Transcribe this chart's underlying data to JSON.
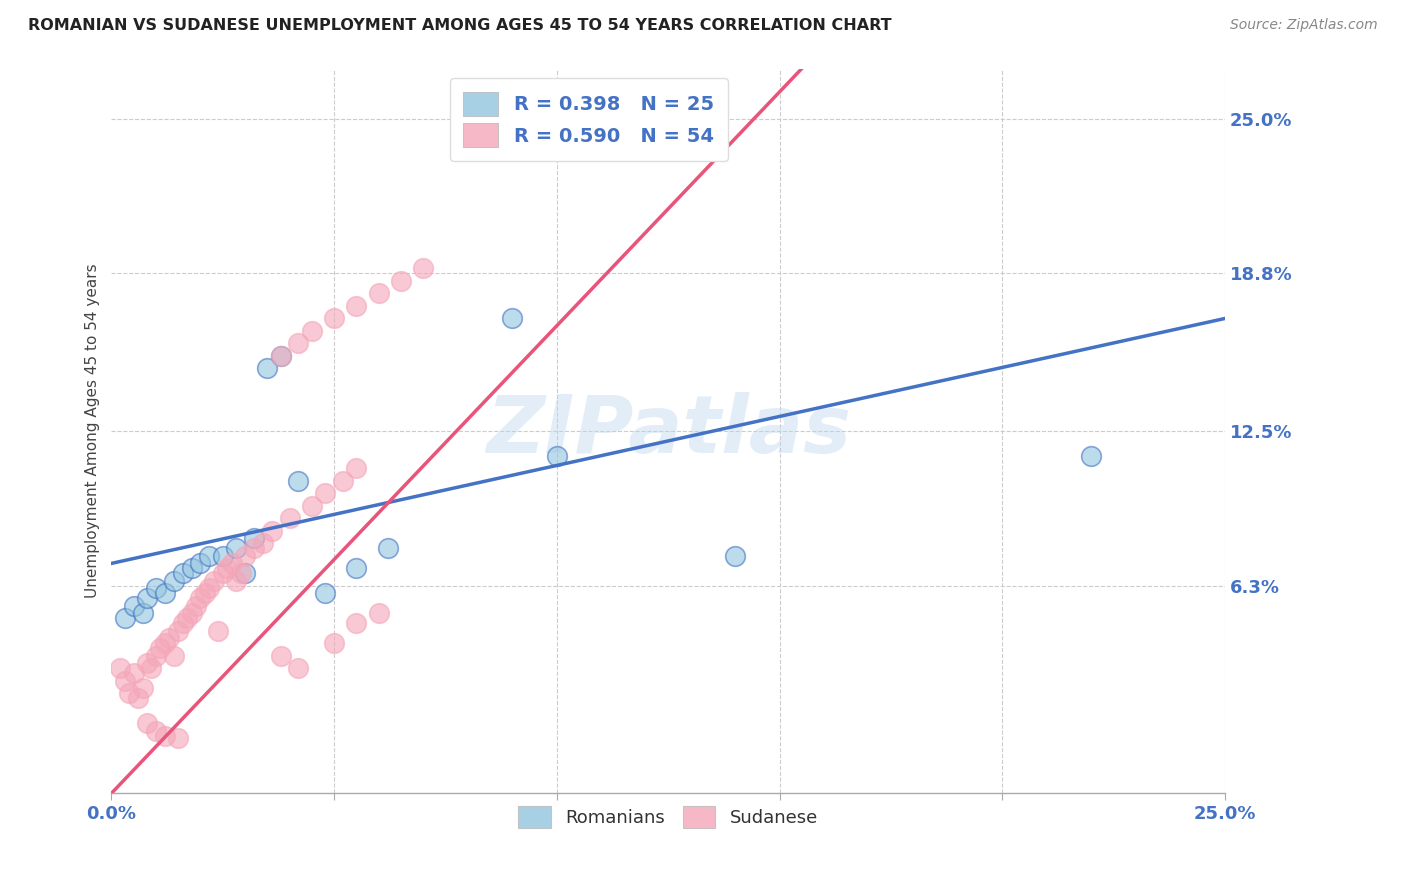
{
  "title": "ROMANIAN VS SUDANESE UNEMPLOYMENT AMONG AGES 45 TO 54 YEARS CORRELATION CHART",
  "source": "Source: ZipAtlas.com",
  "ylabel": "Unemployment Among Ages 45 to 54 years",
  "xlim": [
    0.0,
    0.25
  ],
  "ylim": [
    -0.02,
    0.27
  ],
  "ytick_values": [
    0.063,
    0.125,
    0.188,
    0.25
  ],
  "right_ytick_labels": [
    "25.0%",
    "18.8%",
    "12.5%",
    "6.3%"
  ],
  "right_ytick_values": [
    0.25,
    0.188,
    0.125,
    0.063
  ],
  "watermark": "ZIPatlas",
  "legend_r_romanian": "R = 0.398",
  "legend_n_romanian": "N = 25",
  "legend_r_sudanese": "R = 0.590",
  "legend_n_sudanese": "N = 54",
  "color_romanian": "#92c5de",
  "color_sudanese": "#f4a6b8",
  "line_color_romanian": "#4472c4",
  "line_color_sudanese": "#e8547a",
  "romanian_x": [
    0.003,
    0.005,
    0.007,
    0.008,
    0.01,
    0.012,
    0.014,
    0.016,
    0.018,
    0.02,
    0.022,
    0.025,
    0.028,
    0.03,
    0.032,
    0.035,
    0.038,
    0.042,
    0.048,
    0.055,
    0.062,
    0.09,
    0.1,
    0.14,
    0.22
  ],
  "romanian_y": [
    0.05,
    0.055,
    0.052,
    0.058,
    0.062,
    0.06,
    0.065,
    0.068,
    0.07,
    0.072,
    0.075,
    0.075,
    0.078,
    0.068,
    0.082,
    0.15,
    0.155,
    0.105,
    0.06,
    0.07,
    0.078,
    0.17,
    0.115,
    0.075,
    0.115
  ],
  "sudanese_x": [
    0.002,
    0.003,
    0.004,
    0.005,
    0.006,
    0.007,
    0.008,
    0.009,
    0.01,
    0.011,
    0.012,
    0.013,
    0.014,
    0.015,
    0.016,
    0.017,
    0.018,
    0.019,
    0.02,
    0.021,
    0.022,
    0.023,
    0.024,
    0.025,
    0.026,
    0.027,
    0.028,
    0.029,
    0.03,
    0.032,
    0.034,
    0.036,
    0.038,
    0.04,
    0.042,
    0.045,
    0.048,
    0.05,
    0.052,
    0.055,
    0.038,
    0.042,
    0.045,
    0.05,
    0.055,
    0.06,
    0.065,
    0.07,
    0.055,
    0.06,
    0.008,
    0.01,
    0.012,
    0.015
  ],
  "sudanese_y": [
    0.03,
    0.025,
    0.02,
    0.028,
    0.018,
    0.022,
    0.032,
    0.03,
    0.035,
    0.038,
    0.04,
    0.042,
    0.035,
    0.045,
    0.048,
    0.05,
    0.052,
    0.055,
    0.058,
    0.06,
    0.062,
    0.065,
    0.045,
    0.068,
    0.07,
    0.072,
    0.065,
    0.068,
    0.075,
    0.078,
    0.08,
    0.085,
    0.035,
    0.09,
    0.03,
    0.095,
    0.1,
    0.04,
    0.105,
    0.11,
    0.155,
    0.16,
    0.165,
    0.17,
    0.175,
    0.18,
    0.185,
    0.19,
    0.048,
    0.052,
    0.008,
    0.005,
    0.003,
    0.002
  ],
  "grid_color": "#cccccc",
  "bg_color": "#ffffff"
}
